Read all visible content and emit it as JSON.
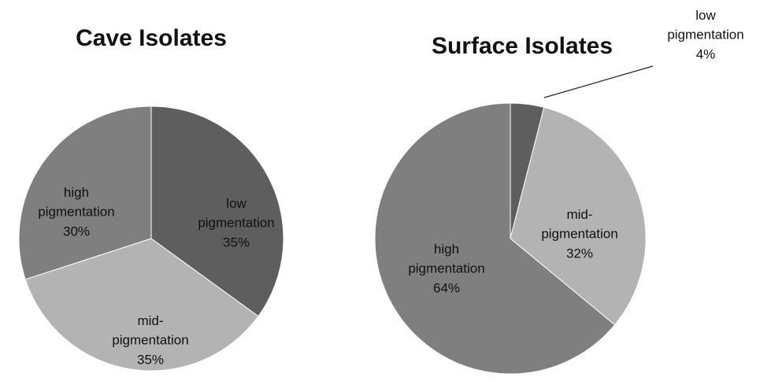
{
  "chart_data": [
    {
      "type": "pie",
      "title": "Cave Isolates",
      "slices": [
        {
          "name": "low pigmentation",
          "value": 35,
          "label_lines": [
            "low",
            "pigmentation",
            "35%"
          ],
          "color": "#5e5e5e"
        },
        {
          "name": "mid-pigmentation",
          "value": 35,
          "label_lines": [
            "mid-",
            "pigmentation",
            "35%"
          ],
          "color": "#b3b3b3"
        },
        {
          "name": "high pigmentation",
          "value": 30,
          "label_lines": [
            "high",
            "pigmentation",
            "30%"
          ],
          "color": "#7f7f7f"
        }
      ]
    },
    {
      "type": "pie",
      "title": "Surface Isolates",
      "slices": [
        {
          "name": "low pigmentation",
          "value": 4,
          "label_lines": [
            "low",
            "pigmentation",
            "4%"
          ],
          "color": "#5e5e5e",
          "leader_line": true
        },
        {
          "name": "mid-pigmentation",
          "value": 32,
          "label_lines": [
            "mid-",
            "pigmentation",
            "32%"
          ],
          "color": "#b3b3b3"
        },
        {
          "name": "high pigmentation",
          "value": 64,
          "label_lines": [
            "high",
            "pigmentation",
            "64%"
          ],
          "color": "#7f7f7f"
        }
      ]
    }
  ]
}
